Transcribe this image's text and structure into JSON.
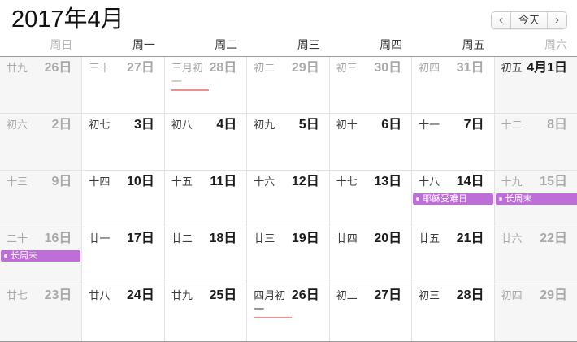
{
  "header": {
    "title": "2017年4月",
    "nav": {
      "prev": "‹",
      "today": "今天",
      "next": "›"
    }
  },
  "weekday_headers": [
    {
      "label": "周日",
      "muted": true
    },
    {
      "label": "周一",
      "muted": false
    },
    {
      "label": "周二",
      "muted": false
    },
    {
      "label": "周三",
      "muted": false
    },
    {
      "label": "周四",
      "muted": false
    },
    {
      "label": "周五",
      "muted": false
    },
    {
      "label": "周六",
      "muted": true
    }
  ],
  "colors": {
    "event_banner": "#bd6fd6",
    "lunar_new_month_underline": "#ee8f8a",
    "weekend_background": "#f6f6f6",
    "muted_text": "#a9a9a9"
  },
  "weeks": [
    {
      "days": [
        {
          "lunar": "廿九",
          "date": "26日",
          "weekend": true,
          "muted": true
        },
        {
          "lunar": "三十",
          "date": "27日",
          "muted": true
        },
        {
          "lunar": "三月初一",
          "date": "28日",
          "muted": true,
          "lunar_new_month": true
        },
        {
          "lunar": "初二",
          "date": "29日",
          "muted": true
        },
        {
          "lunar": "初三",
          "date": "30日",
          "muted": true
        },
        {
          "lunar": "初四",
          "date": "31日",
          "muted": true
        },
        {
          "lunar": "初五",
          "date": "4月1日",
          "weekend": true,
          "emphasized": true
        }
      ]
    },
    {
      "days": [
        {
          "lunar": "初六",
          "date": "2日",
          "weekend": true,
          "muted": true
        },
        {
          "lunar": "初七",
          "date": "3日"
        },
        {
          "lunar": "初八",
          "date": "4日"
        },
        {
          "lunar": "初九",
          "date": "5日"
        },
        {
          "lunar": "初十",
          "date": "6日"
        },
        {
          "lunar": "十一",
          "date": "7日"
        },
        {
          "lunar": "十二",
          "date": "8日",
          "weekend": true,
          "muted": true
        }
      ]
    },
    {
      "days": [
        {
          "lunar": "十三",
          "date": "9日",
          "weekend": true,
          "muted": true
        },
        {
          "lunar": "十四",
          "date": "10日"
        },
        {
          "lunar": "十五",
          "date": "11日"
        },
        {
          "lunar": "十六",
          "date": "12日"
        },
        {
          "lunar": "十七",
          "date": "13日"
        },
        {
          "lunar": "十八",
          "date": "14日",
          "events": [
            {
              "title": "耶稣受难日"
            }
          ]
        },
        {
          "lunar": "十九",
          "date": "15日",
          "weekend": true,
          "muted": true,
          "events": [
            {
              "title": "长周末",
              "continues_right": true
            }
          ]
        }
      ]
    },
    {
      "days": [
        {
          "lunar": "二十",
          "date": "16日",
          "weekend": true,
          "muted": true,
          "events": [
            {
              "title": "长周末"
            }
          ]
        },
        {
          "lunar": "廿一",
          "date": "17日"
        },
        {
          "lunar": "廿二",
          "date": "18日"
        },
        {
          "lunar": "廿三",
          "date": "19日"
        },
        {
          "lunar": "廿四",
          "date": "20日"
        },
        {
          "lunar": "廿五",
          "date": "21日"
        },
        {
          "lunar": "廿六",
          "date": "22日",
          "weekend": true,
          "muted": true
        }
      ]
    },
    {
      "days": [
        {
          "lunar": "廿七",
          "date": "23日",
          "weekend": true,
          "muted": true
        },
        {
          "lunar": "廿八",
          "date": "24日"
        },
        {
          "lunar": "廿九",
          "date": "25日"
        },
        {
          "lunar": "四月初一",
          "date": "26日",
          "lunar_new_month": true
        },
        {
          "lunar": "初二",
          "date": "27日"
        },
        {
          "lunar": "初三",
          "date": "28日"
        },
        {
          "lunar": "初四",
          "date": "29日",
          "weekend": true,
          "muted": true
        }
      ]
    }
  ]
}
